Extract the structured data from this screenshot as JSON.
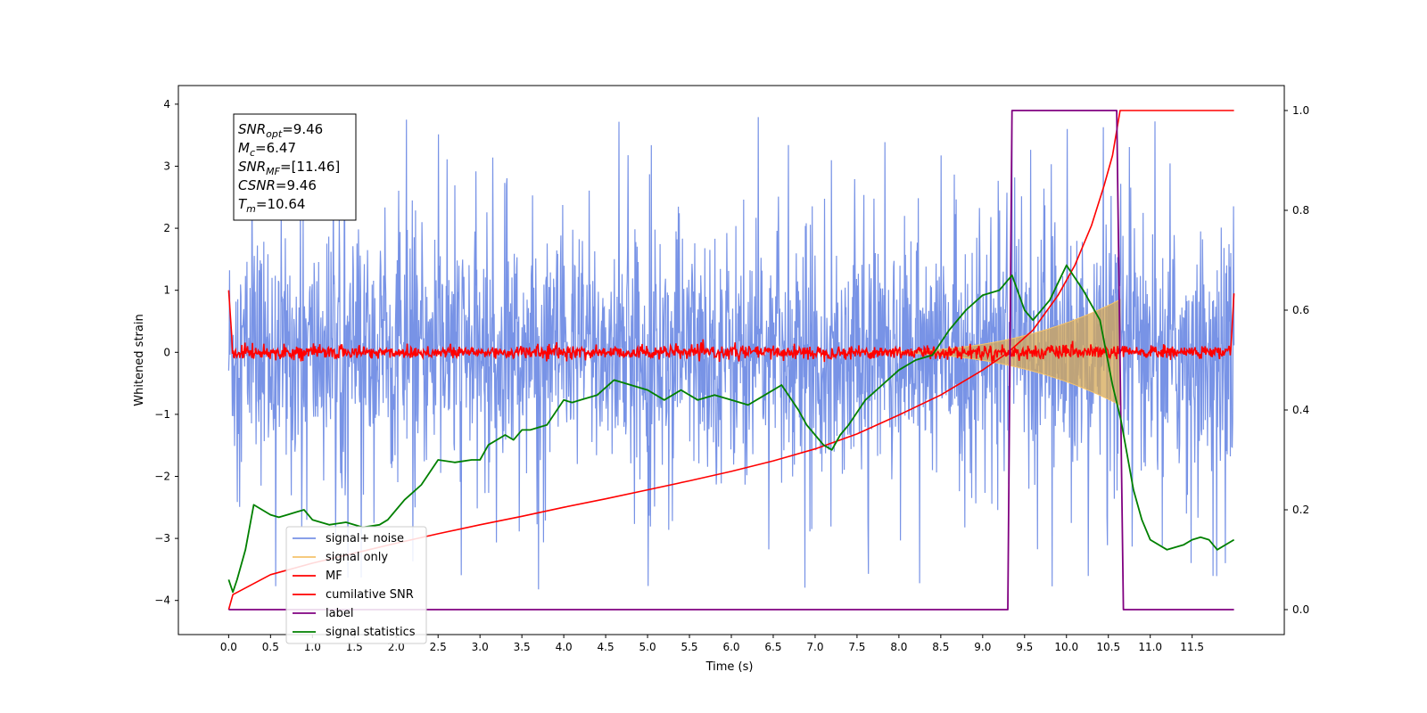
{
  "chart_data": {
    "type": "line",
    "title": "",
    "xlabel": "Time (s)",
    "ylabel": "Whitened strain",
    "xlim": [
      -0.6,
      12.6
    ],
    "ylim": [
      -4.55,
      4.3
    ],
    "y2lim": [
      -0.05,
      1.05
    ],
    "x_ticks": [
      "0.0",
      "0.5",
      "1.0",
      "1.5",
      "2.0",
      "2.5",
      "3.0",
      "3.5",
      "4.0",
      "4.5",
      "5.0",
      "5.5",
      "6.0",
      "6.5",
      "7.0",
      "7.5",
      "8.0",
      "8.5",
      "9.0",
      "9.5",
      "10.0",
      "10.5",
      "11.0",
      "11.5"
    ],
    "y_ticks": [
      "4",
      "3",
      "2",
      "1",
      "0",
      "−1",
      "−2",
      "−3",
      "−4"
    ],
    "y2_ticks": [
      "1.0",
      "0.8",
      "0.6",
      "0.4",
      "0.2",
      "0.0"
    ],
    "grid": false,
    "legend_position": "lower-left",
    "annotation": {
      "lines": [
        {
          "var": "SNR",
          "sub": "opt",
          "value": "=9.46"
        },
        {
          "var": "M",
          "sub": "c",
          "value": "=6.47"
        },
        {
          "var": "SNR",
          "sub": "MF",
          "value": "=[11.46]"
        },
        {
          "var": "CSNR",
          "sub": "",
          "value": "=9.46"
        },
        {
          "var": "T",
          "sub": "m",
          "value": "=10.64"
        }
      ]
    },
    "series": [
      {
        "name": "signal+ noise",
        "axis": "left",
        "color": "#7893e6",
        "note": "noise band, approx amplitude ±1.8 with spikes to ±3.9, from 0.0 to 12.0 s"
      },
      {
        "name": "signal only",
        "axis": "left",
        "color": "#f5c36b",
        "chirp": {
          "t_start": 7.5,
          "t_merge": 10.64,
          "final_amplitude": 0.85
        }
      },
      {
        "name": "MF",
        "axis": "left",
        "color": "#ff0000",
        "note": "matched filter output, approx amplitude ±0.15, edges reach 1.0"
      },
      {
        "name": "cumilative SNR",
        "axis": "right",
        "color": "#ff0000",
        "x": [
          0.0,
          0.05,
          0.5,
          1.0,
          1.5,
          2.0,
          2.5,
          3.0,
          3.5,
          4.0,
          4.5,
          5.0,
          5.5,
          6.0,
          6.5,
          7.0,
          7.5,
          8.0,
          8.5,
          9.0,
          9.3,
          9.6,
          9.9,
          10.1,
          10.3,
          10.45,
          10.55,
          10.6,
          10.64,
          12.0
        ],
        "values": [
          0.0,
          0.03,
          0.07,
          0.093,
          0.113,
          0.133,
          0.152,
          0.17,
          0.187,
          0.205,
          0.222,
          0.24,
          0.258,
          0.277,
          0.298,
          0.322,
          0.352,
          0.39,
          0.43,
          0.48,
          0.515,
          0.56,
          0.63,
          0.69,
          0.77,
          0.85,
          0.91,
          0.96,
          1.0,
          1.0
        ]
      },
      {
        "name": "label",
        "axis": "right",
        "color": "#800080",
        "x": [
          0.0,
          9.3,
          9.35,
          10.6,
          10.68,
          12.0
        ],
        "values": [
          0,
          0,
          1,
          1,
          0,
          0
        ]
      },
      {
        "name": "signal statistics",
        "axis": "right",
        "color": "#008000",
        "x": [
          0.0,
          0.05,
          0.1,
          0.2,
          0.3,
          0.4,
          0.5,
          0.6,
          0.7,
          0.8,
          0.9,
          1.0,
          1.2,
          1.4,
          1.6,
          1.8,
          1.9,
          2.0,
          2.1,
          2.2,
          2.3,
          2.5,
          2.7,
          2.9,
          3.0,
          3.1,
          3.2,
          3.3,
          3.4,
          3.5,
          3.6,
          3.8,
          4.0,
          4.1,
          4.2,
          4.4,
          4.6,
          4.8,
          5.0,
          5.2,
          5.4,
          5.6,
          5.8,
          6.0,
          6.2,
          6.4,
          6.6,
          6.8,
          6.9,
          7.0,
          7.1,
          7.2,
          7.3,
          7.4,
          7.6,
          7.8,
          8.0,
          8.2,
          8.4,
          8.6,
          8.8,
          9.0,
          9.2,
          9.35,
          9.5,
          9.6,
          9.8,
          10.0,
          10.2,
          10.4,
          10.55,
          10.65,
          10.8,
          10.9,
          11.0,
          11.2,
          11.4,
          11.5,
          11.6,
          11.7,
          11.8,
          12.0
        ],
        "values": [
          0.06,
          0.035,
          0.06,
          0.12,
          0.21,
          0.2,
          0.19,
          0.185,
          0.19,
          0.195,
          0.2,
          0.18,
          0.17,
          0.175,
          0.165,
          0.17,
          0.18,
          0.2,
          0.22,
          0.235,
          0.25,
          0.3,
          0.295,
          0.3,
          0.3,
          0.33,
          0.34,
          0.35,
          0.34,
          0.36,
          0.36,
          0.37,
          0.42,
          0.415,
          0.42,
          0.43,
          0.46,
          0.45,
          0.44,
          0.42,
          0.44,
          0.42,
          0.43,
          0.42,
          0.41,
          0.43,
          0.45,
          0.4,
          0.37,
          0.35,
          0.33,
          0.32,
          0.35,
          0.37,
          0.42,
          0.45,
          0.48,
          0.5,
          0.51,
          0.56,
          0.6,
          0.63,
          0.64,
          0.67,
          0.6,
          0.58,
          0.62,
          0.69,
          0.64,
          0.58,
          0.45,
          0.38,
          0.24,
          0.18,
          0.14,
          0.12,
          0.13,
          0.14,
          0.145,
          0.14,
          0.12,
          0.14
        ]
      }
    ]
  }
}
